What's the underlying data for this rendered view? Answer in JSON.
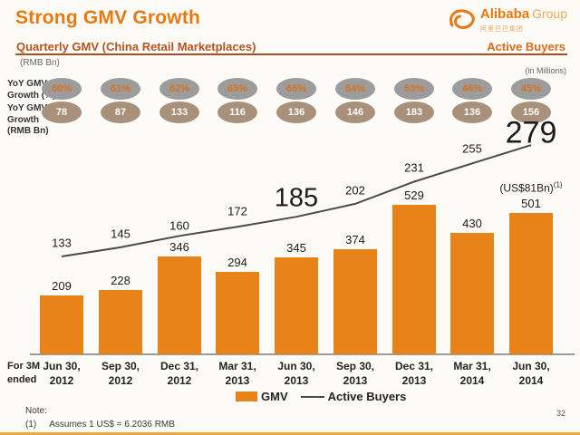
{
  "header": {
    "title": "Strong GMV Growth",
    "logo_brand": "Alibaba",
    "logo_suffix": "Group",
    "logo_chinese": "阿里巴巴集团"
  },
  "subheader": {
    "left_title": "Quarterly GMV (China Retail Marketplaces)",
    "right_title": "Active Buyers",
    "left_unit": "(RMB Bn)",
    "right_unit": "(in Millions)"
  },
  "yoy_rows": [
    {
      "label_lines": [
        "YoY GMV",
        "Growth (%)"
      ],
      "values": [
        "60%",
        "61%",
        "62%",
        "65%",
        "65%",
        "64%",
        "53%",
        "46%",
        "45%"
      ],
      "bg": "#9c9c9c",
      "fg": "#D8711C"
    },
    {
      "label_lines": [
        "YoY GMV",
        "Growth",
        "(RMB Bn)"
      ],
      "values": [
        "78",
        "87",
        "133",
        "116",
        "136",
        "146",
        "183",
        "136",
        "156"
      ],
      "bg": "#A8907A",
      "fg": "#FFFFFF"
    }
  ],
  "chart_data": {
    "type": "bar+line",
    "title": "Quarterly GMV (China Retail Marketplaces)",
    "categories": [
      "Jun 30, 2012",
      "Sep 30, 2012",
      "Dec 31, 2012",
      "Mar 31, 2013",
      "Jun 30, 2013",
      "Sep 30, 2013",
      "Dec 31, 2013",
      "Mar 31, 2014",
      "Jun 30, 2014"
    ],
    "series": [
      {
        "name": "GMV",
        "type": "bar",
        "unit": "RMB Bn",
        "color": "#E8831A",
        "values": [
          209,
          228,
          346,
          294,
          345,
          374,
          529,
          430,
          501
        ]
      },
      {
        "name": "Active Buyers",
        "type": "line",
        "unit": "Millions",
        "color": "#4a4a4a",
        "values": [
          133,
          145,
          160,
          172,
          185,
          202,
          231,
          255,
          279
        ]
      }
    ],
    "emphasized_values": [
      185,
      279
    ],
    "annotation_last_bar": "(US$81Bn)",
    "annotation_last_bar_sup": "(1)",
    "x_axis_caption_lines": [
      "For 3M",
      "ended"
    ],
    "legend_position": "bottom",
    "grid": false
  },
  "footer": {
    "note_label": "Note:",
    "note_number": "(1)",
    "note_text": "Assumes 1 US$ = 6.2036 RMB",
    "page_number": "32"
  }
}
